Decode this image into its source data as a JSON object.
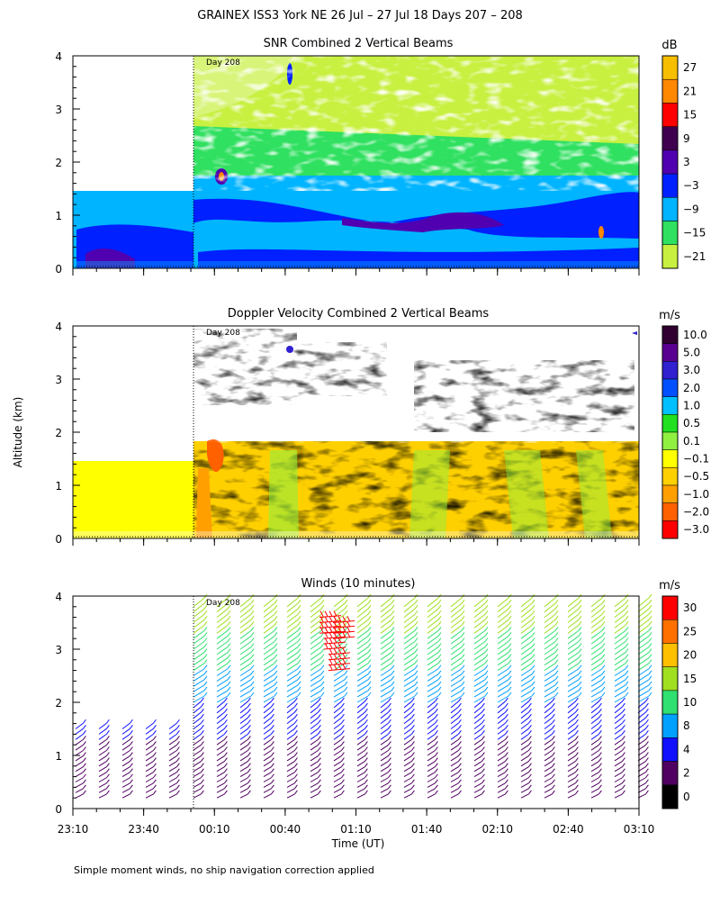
{
  "figure": {
    "title": "GRAINEX ISS3 York NE  26 Jul – 27 Jul 18 Days 207 – 208",
    "ylabel": "Altitude (km)",
    "xlabel": "Time (UT)",
    "footnote": "Simple moment winds, no ship navigation correction applied",
    "day_marker": "Day 208",
    "time_ticks": [
      "23:10",
      "23:40",
      "00:10",
      "00:40",
      "01:10",
      "01:40",
      "02:10",
      "02:40",
      "03:10"
    ]
  },
  "chart_data": [
    {
      "type": "heatmap",
      "title": "SNR Combined 2 Vertical Beams",
      "units": "dB",
      "x_range": [
        "23:10",
        "03:10"
      ],
      "y_range": [
        0,
        4
      ],
      "y_ticks": [
        0,
        1,
        2,
        3,
        4
      ],
      "colorbar_labels": [
        "27",
        "21",
        "15",
        "9",
        "3",
        "−3",
        "−9",
        "−15",
        "−21"
      ],
      "colorbar_colors": [
        "#f7be00",
        "#ff8800",
        "#ff0000",
        "#400050",
        "#5000b0",
        "#0020ff",
        "#00b4ff",
        "#30e060",
        "#c8f040"
      ]
    },
    {
      "type": "heatmap",
      "title": "Doppler Velocity Combined 2 Vertical Beams",
      "units": "m/s",
      "x_range": [
        "23:10",
        "03:10"
      ],
      "y_range": [
        0,
        4
      ],
      "y_ticks": [
        0,
        1,
        2,
        3,
        4
      ],
      "colorbar_labels": [
        "10.0",
        "5.0",
        "3.0",
        "2.0",
        "1.0",
        "0.5",
        "0.1",
        "−0.1",
        "−0.5",
        "−1.0",
        "−2.0",
        "−3.0"
      ],
      "colorbar_colors": [
        "#300030",
        "#5a0090",
        "#3020d0",
        "#0050ff",
        "#00c0ff",
        "#20e020",
        "#90f040",
        "#ffff00",
        "#ffd000",
        "#ffa000",
        "#ff6000",
        "#ff0000"
      ]
    },
    {
      "type": "scatter",
      "title": "Winds (10 minutes)",
      "units": "m/s",
      "x_range": [
        "23:10",
        "03:10"
      ],
      "y_range": [
        0,
        4
      ],
      "y_ticks": [
        0,
        1,
        2,
        3,
        4
      ],
      "colorbar_labels": [
        "30",
        "25",
        "20",
        "15",
        "10",
        "8",
        "4",
        "2",
        "0"
      ],
      "colorbar_colors": [
        "#ff0000",
        "#ff7000",
        "#ffc000",
        "#a0e020",
        "#30e070",
        "#00a0ff",
        "#1010ff",
        "#500060",
        "#000000"
      ]
    }
  ]
}
